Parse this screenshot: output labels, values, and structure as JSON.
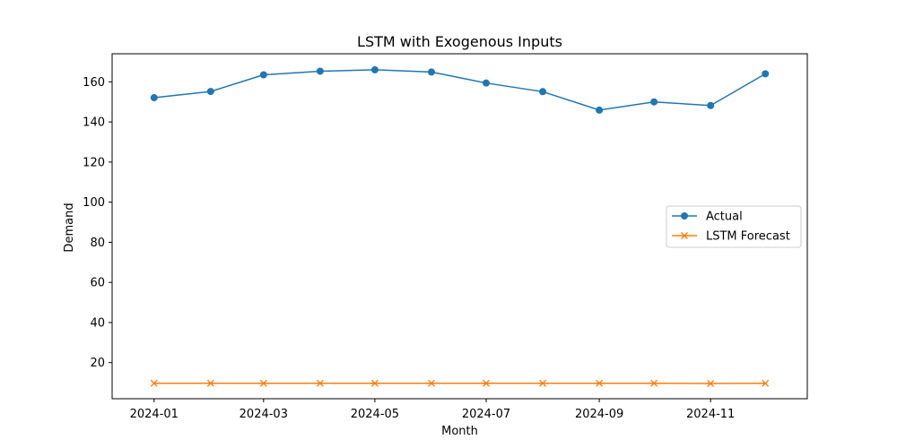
{
  "chart_data": {
    "type": "line",
    "title": "LSTM with Exogenous Inputs",
    "xlabel": "Month",
    "ylabel": "Demand",
    "x": [
      "2024-01-01",
      "2024-02-01",
      "2024-03-01",
      "2024-04-01",
      "2024-05-01",
      "2024-06-01",
      "2024-07-01",
      "2024-08-01",
      "2024-09-01",
      "2024-10-01",
      "2024-11-01",
      "2024-12-01"
    ],
    "x_ticks": [
      "2024-01",
      "2024-03",
      "2024-05",
      "2024-07",
      "2024-09",
      "2024-11"
    ],
    "y_ticks": [
      20,
      40,
      60,
      80,
      100,
      120,
      140,
      160
    ],
    "ylim": [
      2,
      174
    ],
    "xlim": [
      "2023-12-09",
      "2024-12-24"
    ],
    "grid": false,
    "legend_position": "center-right",
    "series": [
      {
        "name": "Actual",
        "color": "#1f77b4",
        "marker": "circle",
        "values": [
          152.1,
          155.2,
          163.5,
          165.3,
          166.0,
          164.9,
          159.4,
          155.1,
          145.9,
          150.0,
          148.2,
          164.0
        ]
      },
      {
        "name": "LSTM Forecast",
        "color": "#ff7f0e",
        "marker": "x",
        "values": [
          9.7,
          9.7,
          9.7,
          9.7,
          9.7,
          9.7,
          9.7,
          9.7,
          9.7,
          9.7,
          9.6,
          9.7
        ]
      }
    ]
  }
}
